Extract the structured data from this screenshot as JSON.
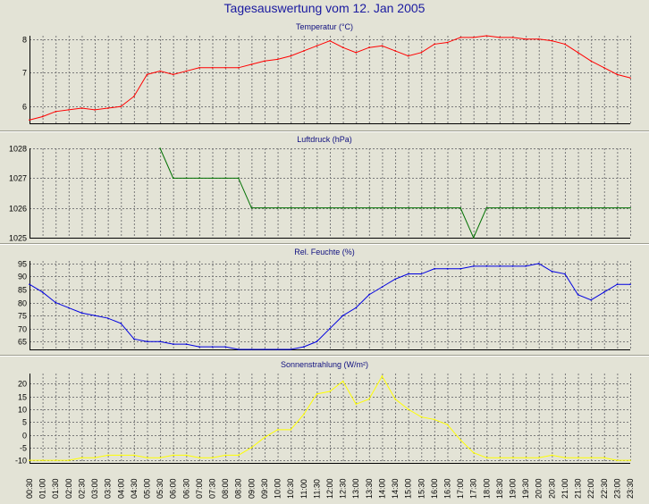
{
  "title": "Tagesauswertung vom 12. Jan 2005",
  "colors": {
    "title": "#1a1aa0",
    "background": "#e3e3d6",
    "plot_background": "#e3e3d6",
    "grid": "#7a7a7a"
  },
  "x_ticks": [
    "00:30",
    "01:00",
    "01:30",
    "02:00",
    "02:30",
    "03:00",
    "03:30",
    "04:00",
    "04:30",
    "05:00",
    "05:30",
    "06:00",
    "06:30",
    "07:00",
    "07:30",
    "08:00",
    "08:30",
    "09:00",
    "09:30",
    "10:00",
    "10:30",
    "11:00",
    "11:30",
    "12:00",
    "12:30",
    "13:00",
    "13:30",
    "14:00",
    "14:30",
    "15:00",
    "15:30",
    "16:00",
    "16:30",
    "17:00",
    "17:30",
    "18:00",
    "18:30",
    "19:00",
    "19:30",
    "20:00",
    "20:30",
    "21:00",
    "21:30",
    "22:00",
    "22:30",
    "23:00",
    "23:30"
  ],
  "chart_data": [
    {
      "type": "line",
      "title": "Temperatur (°C)",
      "color": "#ff0000",
      "ylim": [
        5.5,
        8.1
      ],
      "yticks": [
        6,
        7,
        8
      ],
      "x": [
        "00:30",
        "01:00",
        "01:30",
        "02:00",
        "02:30",
        "03:00",
        "03:30",
        "04:00",
        "04:30",
        "05:00",
        "05:30",
        "06:00",
        "06:30",
        "07:00",
        "07:30",
        "08:00",
        "08:30",
        "09:00",
        "09:30",
        "10:00",
        "10:30",
        "11:00",
        "11:30",
        "12:00",
        "12:30",
        "13:00",
        "13:30",
        "14:00",
        "14:30",
        "15:00",
        "15:30",
        "16:00",
        "16:30",
        "17:00",
        "17:30",
        "18:00",
        "18:30",
        "19:00",
        "19:30",
        "20:00",
        "20:30",
        "21:00",
        "21:30",
        "22:00",
        "22:30",
        "23:00",
        "23:30"
      ],
      "values": [
        5.6,
        5.7,
        5.85,
        5.9,
        5.95,
        5.9,
        5.95,
        6.0,
        6.3,
        6.95,
        7.05,
        6.95,
        7.05,
        7.15,
        7.15,
        7.15,
        7.15,
        7.25,
        7.35,
        7.4,
        7.5,
        7.65,
        7.8,
        7.95,
        7.75,
        7.6,
        7.75,
        7.8,
        7.65,
        7.5,
        7.6,
        7.85,
        7.9,
        8.05,
        8.05,
        8.1,
        8.05,
        8.05,
        8.0,
        8.0,
        7.95,
        7.85,
        7.6,
        7.35,
        7.15,
        6.95,
        6.85
      ]
    },
    {
      "type": "line",
      "title": "Luftdruck (hPa)",
      "color": "#007000",
      "ylim": [
        1025,
        1028
      ],
      "yticks": [
        1025,
        1026,
        1027,
        1028
      ],
      "x": [
        "00:30",
        "01:00",
        "01:30",
        "02:00",
        "02:30",
        "03:00",
        "03:30",
        "04:00",
        "04:30",
        "05:00",
        "05:30",
        "06:00",
        "06:30",
        "07:00",
        "07:30",
        "08:00",
        "08:30",
        "09:00",
        "09:30",
        "10:00",
        "10:30",
        "11:00",
        "11:30",
        "12:00",
        "12:30",
        "13:00",
        "13:30",
        "14:00",
        "14:30",
        "15:00",
        "15:30",
        "16:00",
        "16:30",
        "17:00",
        "17:30",
        "18:00",
        "18:30",
        "19:00",
        "19:30",
        "20:00",
        "20:30",
        "21:00",
        "21:30",
        "22:00",
        "22:30",
        "23:00",
        "23:30"
      ],
      "values": [
        null,
        null,
        null,
        null,
        null,
        null,
        null,
        null,
        null,
        null,
        1028,
        1027,
        1027,
        1027,
        1027,
        1027,
        1027,
        1026,
        1026,
        1026,
        1026,
        1026,
        1026,
        1026,
        1026,
        1026,
        1026,
        1026,
        1026,
        1026,
        1026,
        1026,
        1026,
        1026,
        1025,
        1026,
        1026,
        1026,
        1026,
        1026,
        1026,
        1026,
        1026,
        1026,
        1026,
        1026,
        1026
      ]
    },
    {
      "type": "line",
      "title": "Rel. Feuchte (%)",
      "color": "#0000e0",
      "ylim": [
        62,
        96
      ],
      "yticks": [
        65,
        70,
        75,
        80,
        85,
        90,
        95
      ],
      "x": [
        "00:30",
        "01:00",
        "01:30",
        "02:00",
        "02:30",
        "03:00",
        "03:30",
        "04:00",
        "04:30",
        "05:00",
        "05:30",
        "06:00",
        "06:30",
        "07:00",
        "07:30",
        "08:00",
        "08:30",
        "09:00",
        "09:30",
        "10:00",
        "10:30",
        "11:00",
        "11:30",
        "12:00",
        "12:30",
        "13:00",
        "13:30",
        "14:00",
        "14:30",
        "15:00",
        "15:30",
        "16:00",
        "16:30",
        "17:00",
        "17:30",
        "18:00",
        "18:30",
        "19:00",
        "19:30",
        "20:00",
        "20:30",
        "21:00",
        "21:30",
        "22:00",
        "22:30",
        "23:00",
        "23:30"
      ],
      "values": [
        87,
        84,
        80,
        78,
        76,
        75,
        74,
        72,
        66,
        65,
        65,
        64,
        64,
        63,
        63,
        63,
        62,
        62,
        62,
        62,
        62,
        63,
        65,
        70,
        75,
        78,
        83,
        86,
        89,
        91,
        91,
        93,
        93,
        93,
        94,
        94,
        94,
        94,
        94,
        95,
        92,
        91,
        83,
        81,
        84,
        87,
        87
      ]
    },
    {
      "type": "line",
      "title": "Sonnenstrahlung (W/m²)",
      "color": "#ffff00",
      "ylim": [
        -11,
        24
      ],
      "yticks": [
        -10,
        -5,
        0,
        5,
        10,
        15,
        20
      ],
      "x": [
        "00:30",
        "01:00",
        "01:30",
        "02:00",
        "02:30",
        "03:00",
        "03:30",
        "04:00",
        "04:30",
        "05:00",
        "05:30",
        "06:00",
        "06:30",
        "07:00",
        "07:30",
        "08:00",
        "08:30",
        "09:00",
        "09:30",
        "10:00",
        "10:30",
        "11:00",
        "11:30",
        "12:00",
        "12:30",
        "13:00",
        "13:30",
        "14:00",
        "14:30",
        "15:00",
        "15:30",
        "16:00",
        "16:30",
        "17:00",
        "17:30",
        "18:00",
        "18:30",
        "19:00",
        "19:30",
        "20:00",
        "20:30",
        "21:00",
        "21:30",
        "22:00",
        "22:30",
        "23:00",
        "23:30"
      ],
      "values": [
        -10,
        -10,
        -10,
        -10,
        -9,
        -9,
        -8,
        -8,
        -8,
        -9,
        -9,
        -8,
        -8,
        -9,
        -9,
        -8,
        -8,
        -5,
        -1,
        2,
        2,
        8,
        16,
        17,
        21,
        12,
        14,
        23,
        14,
        10,
        7,
        6,
        4,
        -2,
        -7,
        -9,
        -9,
        -9,
        -9,
        -9,
        -8,
        -9,
        -9,
        -9,
        -9,
        -10,
        -10
      ]
    }
  ]
}
